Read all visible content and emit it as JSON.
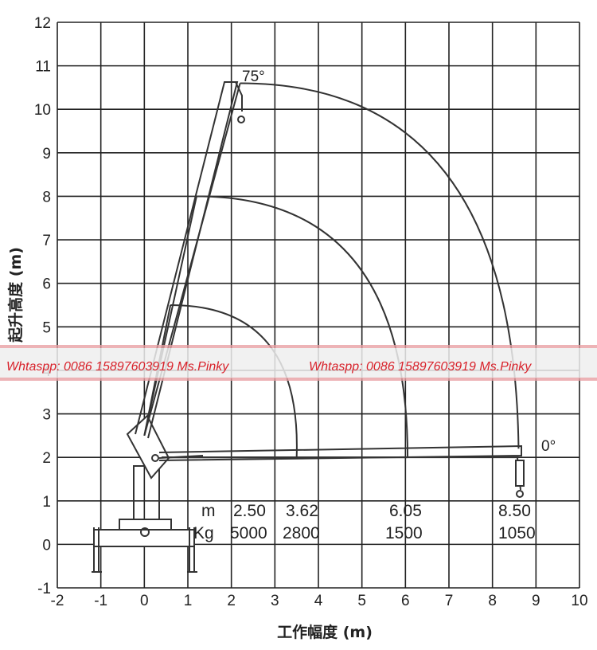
{
  "chart_data": {
    "type": "line",
    "xlabel": "工作幅度 (m)",
    "ylabel": "起升高度 (m)",
    "xlim": [
      -2,
      10
    ],
    "ylim": [
      -1,
      12
    ],
    "x_ticks": [
      "-2",
      "-1",
      "0",
      "1",
      "2",
      "3",
      "4",
      "5",
      "6",
      "7",
      "8",
      "9",
      "10"
    ],
    "y_ticks": [
      "-1",
      "0",
      "1",
      "2",
      "3",
      "4",
      "5",
      "6",
      "7",
      "8",
      "9",
      "10",
      "11",
      "12"
    ],
    "grid": true,
    "angle_labels": {
      "max": "75°",
      "min": "0°"
    },
    "load_table": {
      "row1_label": "m",
      "row2_label": "Kg",
      "radius_m": [
        "2.50",
        "3.62",
        "6.05",
        "8.50"
      ],
      "load_kg": [
        "5000",
        "2800",
        "1500",
        "1050"
      ]
    },
    "working_range_arcs": [
      {
        "boom_tip_high": [
          0.6,
          5.5
        ],
        "boom_tip_low": [
          3.5,
          2.0
        ],
        "max_radius": 3.62
      },
      {
        "boom_tip_high": [
          1.2,
          8.0
        ],
        "boom_tip_low": [
          6.05,
          2.0
        ],
        "max_radius": 6.05
      },
      {
        "boom_tip_high": [
          2.2,
          10.6
        ],
        "boom_tip_low": [
          8.6,
          2.2
        ],
        "max_radius": 8.5
      }
    ]
  },
  "watermark": {
    "text_left": "Whtaspp: 0086 15897603919 Ms.Pinky",
    "text_right": "Whtaspp: 0086 15897603919 Ms.Pinky"
  }
}
